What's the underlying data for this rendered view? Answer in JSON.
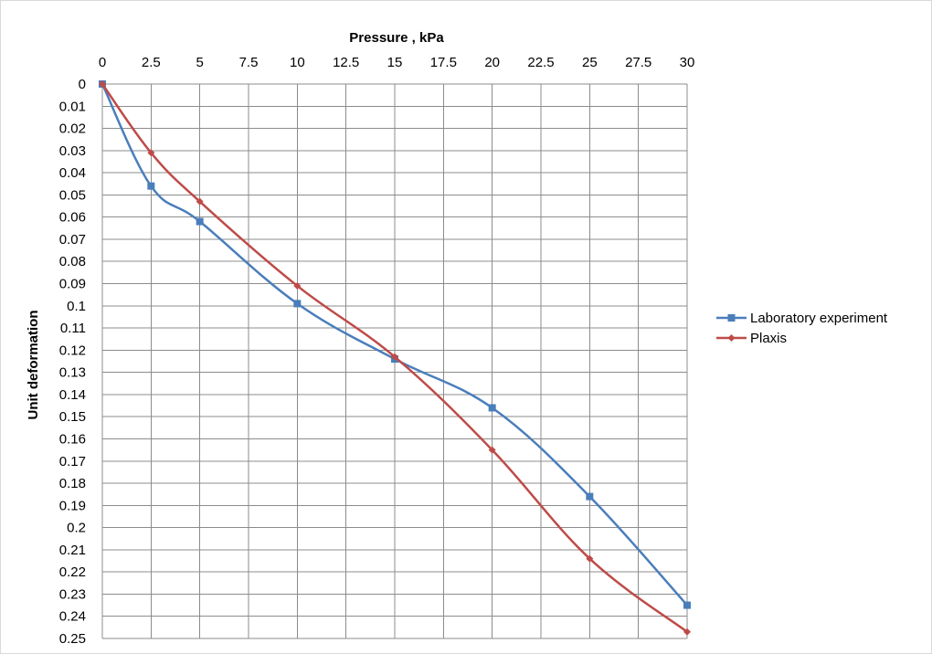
{
  "chart_data": {
    "type": "line",
    "xlabel": "Pressure , kPa",
    "ylabel": "Unit deformation",
    "xlim": [
      0,
      30
    ],
    "ylim": [
      0,
      0.25
    ],
    "y_inverted": true,
    "x_axis_position": "top",
    "grid": true,
    "legend_position": "right",
    "x_ticks": [
      "0",
      "2.5",
      "5",
      "7.5",
      "10",
      "12.5",
      "15",
      "17.5",
      "20",
      "22.5",
      "25",
      "27.5",
      "30"
    ],
    "y_ticks": [
      "0",
      "0.01",
      "0.02",
      "0.03",
      "0.04",
      "0.05",
      "0.06",
      "0.07",
      "0.08",
      "0.09",
      "0.1",
      "0.11",
      "0.12",
      "0.13",
      "0.14",
      "0.15",
      "0.16",
      "0.17",
      "0.18",
      "0.19",
      "0.2",
      "0.21",
      "0.22",
      "0.23",
      "0.24",
      "0.25"
    ],
    "series": [
      {
        "name": "Laboratory experiment",
        "color": "#4a7ebb",
        "marker": "square",
        "x": [
          0,
          2.5,
          5,
          10,
          15,
          20,
          25,
          30
        ],
        "y": [
          0,
          0.046,
          0.062,
          0.099,
          0.124,
          0.146,
          0.186,
          0.235
        ]
      },
      {
        "name": "Plaxis",
        "color": "#be4b48",
        "marker": "diamond",
        "x": [
          0,
          2.5,
          5,
          10,
          15,
          20,
          25,
          30
        ],
        "y": [
          0,
          0.031,
          0.053,
          0.091,
          0.123,
          0.165,
          0.214,
          0.247
        ]
      }
    ]
  }
}
